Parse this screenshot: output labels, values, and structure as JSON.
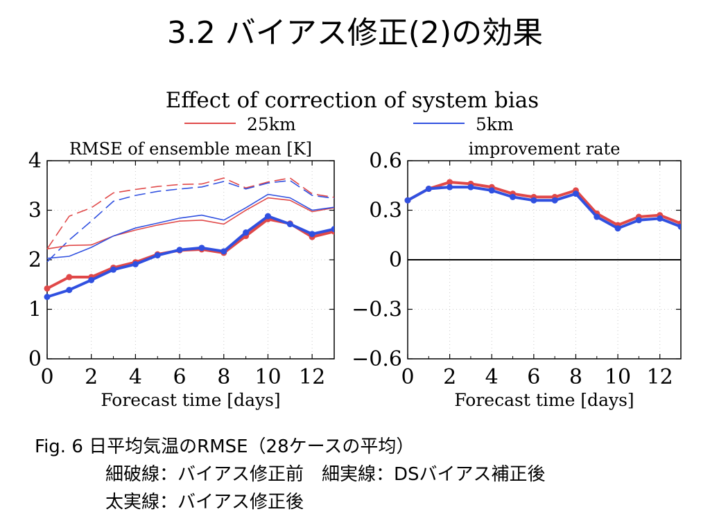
{
  "slide": {
    "title": "3.2 バイアス修正(2)の効果",
    "caption_line1": "Fig. 6 日平均気温のRMSE（28ケースの平均）",
    "caption_line2": "細破線：バイアス修正前　細実線：DSバイアス補正後",
    "caption_line3": "太実線：バイアス修正後"
  },
  "figure": {
    "title": "Effect of correction of system bias",
    "legend": [
      {
        "label": "25km",
        "color": "#e04848"
      },
      {
        "label": "5km",
        "color": "#3050e0"
      }
    ]
  },
  "colors": {
    "red": "#e04848",
    "blue": "#3050e0",
    "zero_line": "#000000",
    "grid": "#c8c8c8"
  },
  "chart_data": [
    {
      "type": "line",
      "title": "RMSE of ensemble mean [K]",
      "xlabel": "Forecast time [days]",
      "ylabel": "",
      "xlim": [
        0,
        13
      ],
      "ylim": [
        0,
        4
      ],
      "xticks": [
        0,
        2,
        4,
        6,
        8,
        10,
        12
      ],
      "xtick_labels": [
        "0",
        "2",
        "4",
        "6",
        "8",
        "10",
        "12"
      ],
      "yticks": [
        0,
        1,
        2,
        3,
        4
      ],
      "ytick_labels": [
        "0",
        "1",
        "2",
        "3",
        "4"
      ],
      "grid": true,
      "x": [
        0,
        1,
        2,
        3,
        4,
        5,
        6,
        7,
        8,
        9,
        10,
        11,
        12,
        13
      ],
      "series": [
        {
          "group": "25km",
          "style": "dashed-thin",
          "color": "#e04848",
          "values": [
            2.22,
            2.88,
            3.05,
            3.35,
            3.42,
            3.48,
            3.52,
            3.53,
            3.65,
            3.45,
            3.57,
            3.65,
            3.33,
            3.26
          ]
        },
        {
          "group": "5km",
          "style": "dashed-thin",
          "color": "#3050e0",
          "values": [
            1.96,
            2.4,
            2.78,
            3.18,
            3.3,
            3.38,
            3.43,
            3.47,
            3.58,
            3.43,
            3.55,
            3.6,
            3.3,
            3.24
          ]
        },
        {
          "group": "25km",
          "style": "solid-thin",
          "color": "#e04848",
          "values": [
            2.22,
            2.29,
            2.3,
            2.48,
            2.6,
            2.7,
            2.78,
            2.8,
            2.72,
            3.0,
            3.25,
            3.2,
            2.97,
            3.05
          ]
        },
        {
          "group": "5km",
          "style": "solid-thin",
          "color": "#3050e0",
          "values": [
            2.03,
            2.07,
            2.25,
            2.48,
            2.64,
            2.74,
            2.84,
            2.9,
            2.8,
            3.05,
            3.32,
            3.25,
            3.0,
            3.06
          ]
        },
        {
          "group": "25km",
          "style": "thick-dots",
          "color": "#e04848",
          "values": [
            1.42,
            1.65,
            1.65,
            1.84,
            1.95,
            2.11,
            2.19,
            2.21,
            2.14,
            2.48,
            2.82,
            2.73,
            2.46,
            2.57
          ]
        },
        {
          "group": "5km",
          "style": "thick-dots",
          "color": "#3050e0",
          "values": [
            1.25,
            1.39,
            1.59,
            1.8,
            1.91,
            2.09,
            2.2,
            2.24,
            2.17,
            2.55,
            2.88,
            2.72,
            2.52,
            2.62
          ]
        }
      ]
    },
    {
      "type": "line",
      "title": "improvement rate",
      "xlabel": "Forecast time [days]",
      "ylabel": "",
      "xlim": [
        0,
        13
      ],
      "ylim": [
        -0.6,
        0.6
      ],
      "xticks": [
        0,
        2,
        4,
        6,
        8,
        10,
        12
      ],
      "xtick_labels": [
        "0",
        "2",
        "4",
        "6",
        "8",
        "10",
        "12"
      ],
      "yticks": [
        -0.6,
        -0.3,
        0,
        0.3,
        0.6
      ],
      "ytick_labels": [
        "−0.6",
        "−0.3",
        "0",
        "0.3",
        "0.6"
      ],
      "grid": true,
      "zero_line": true,
      "x": [
        0,
        1,
        2,
        3,
        4,
        5,
        6,
        7,
        8,
        9,
        10,
        11,
        12,
        13
      ],
      "series": [
        {
          "group": "25km",
          "style": "thick-dots",
          "color": "#e04848",
          "values": [
            0.36,
            0.43,
            0.47,
            0.46,
            0.44,
            0.4,
            0.38,
            0.38,
            0.42,
            0.28,
            0.21,
            0.26,
            0.27,
            0.22
          ]
        },
        {
          "group": "5km",
          "style": "thick-dots",
          "color": "#3050e0",
          "values": [
            0.36,
            0.43,
            0.44,
            0.44,
            0.42,
            0.38,
            0.36,
            0.36,
            0.4,
            0.26,
            0.19,
            0.24,
            0.25,
            0.2
          ]
        }
      ]
    }
  ]
}
